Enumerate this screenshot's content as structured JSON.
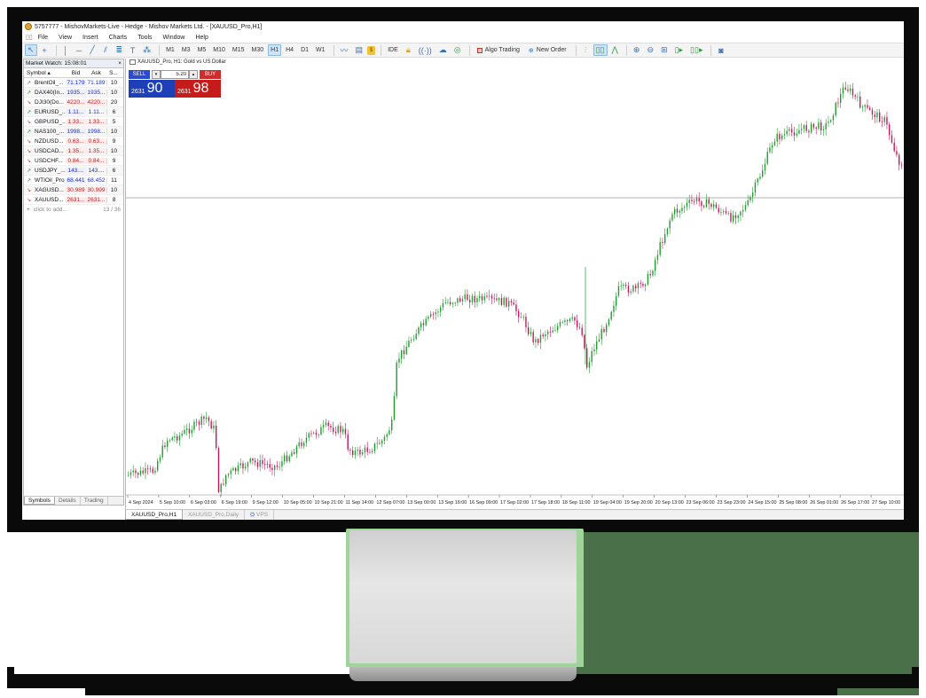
{
  "window": {
    "title": "5757777 - MishovMarkets-Live - Hedge - Mishov Markets Ltd. - [XAUUSD_Pro,H1]"
  },
  "menu": {
    "items": [
      "File",
      "View",
      "Insert",
      "Charts",
      "Tools",
      "Window",
      "Help"
    ]
  },
  "toolbar": {
    "timeframes": [
      "M1",
      "M3",
      "M5",
      "M10",
      "M15",
      "M30",
      "H1",
      "H4",
      "D1",
      "W1"
    ],
    "active_timeframe": "H1",
    "ide_label": "IDE",
    "algo_trading_label": "Algo Trading",
    "new_order_label": "New Order"
  },
  "market_watch": {
    "header": "Market Watch: 15:08:01",
    "columns": [
      "Symbol",
      "Bid",
      "Ask",
      "S..."
    ],
    "rows": [
      {
        "symbol": "BrentOil_...",
        "bid": "71.179",
        "ask": "71.189",
        "spread": "10",
        "dir": "up"
      },
      {
        "symbol": "DAX40(In...",
        "bid": "1935...",
        "ask": "1935...",
        "spread": "10",
        "dir": "up"
      },
      {
        "symbol": "DJI30(Do...",
        "bid": "4220...",
        "ask": "4220...",
        "spread": "20",
        "dir": "dn"
      },
      {
        "symbol": "EURUSD_...",
        "bid": "1.11...",
        "ask": "1.11...",
        "spread": "6",
        "dir": "up"
      },
      {
        "symbol": "GBPUSD_...",
        "bid": "1.33...",
        "ask": "1.33...",
        "spread": "5",
        "dir": "dn"
      },
      {
        "symbol": "NAS100_...",
        "bid": "1998...",
        "ask": "1998...",
        "spread": "10",
        "dir": "up"
      },
      {
        "symbol": "NZDUSD...",
        "bid": "0.63...",
        "ask": "0.63...",
        "spread": "9",
        "dir": "dn"
      },
      {
        "symbol": "USDCAD...",
        "bid": "1.35...",
        "ask": "1.35...",
        "spread": "10",
        "dir": "dn"
      },
      {
        "symbol": "USDCHF...",
        "bid": "0.84...",
        "ask": "0.84...",
        "spread": "9",
        "dir": "dn"
      },
      {
        "symbol": "USDJPY_...",
        "bid": "143....",
        "ask": "143....",
        "spread": "6",
        "dir": "up"
      },
      {
        "symbol": "WTIOil_Pro",
        "bid": "68.441",
        "ask": "68.452",
        "spread": "11",
        "dir": "up"
      },
      {
        "symbol": "XAGUSD...",
        "bid": "30.989",
        "ask": "30.999",
        "spread": "10",
        "dir": "dn"
      },
      {
        "symbol": "XAUUSD...",
        "bid": "2631...",
        "ask": "2631...",
        "spread": "8",
        "dir": "dn"
      }
    ],
    "add_label": "click to add...",
    "count": "13 / 36",
    "tabs": [
      "Symbols",
      "Details",
      "Trading"
    ]
  },
  "chart": {
    "title": "XAUUSD_Pro, H1:  Gold vs US Dollar",
    "one_click": {
      "sell_label": "SELL",
      "buy_label": "BUY",
      "lot": "5.20",
      "sell_price_small": "2631",
      "sell_price_big": "90",
      "buy_price_small": "2631",
      "buy_price_big": "98"
    },
    "time_labels": [
      "4 Sep 2024",
      "5 Sep 10:00",
      "6 Sep 03:00",
      "6 Sep 19:00",
      "9 Sep 12:00",
      "10 Sep 05:00",
      "10 Sep 21:00",
      "11 Sep 14:00",
      "12 Sep 07:00",
      "13 Sep 00:00",
      "13 Sep 16:00",
      "16 Sep 09:00",
      "17 Sep 02:00",
      "17 Sep 18:00",
      "18 Sep 11:00",
      "19 Sep 04:00",
      "19 Sep 20:00",
      "20 Sep 13:00",
      "23 Sep 06:00",
      "23 Sep 23:00",
      "24 Sep 15:00",
      "25 Sep 08:00",
      "26 Sep 01:00",
      "26 Sep 17:00",
      "27 Sep 10:00"
    ],
    "tabs": [
      "XAUUSD_Pro,H1",
      "XAUUSD_Pro,Daily",
      "VPS"
    ],
    "colors": {
      "bull": "#1f9d2e",
      "bear": "#c2185b",
      "hline": "#9a9a9a"
    }
  }
}
